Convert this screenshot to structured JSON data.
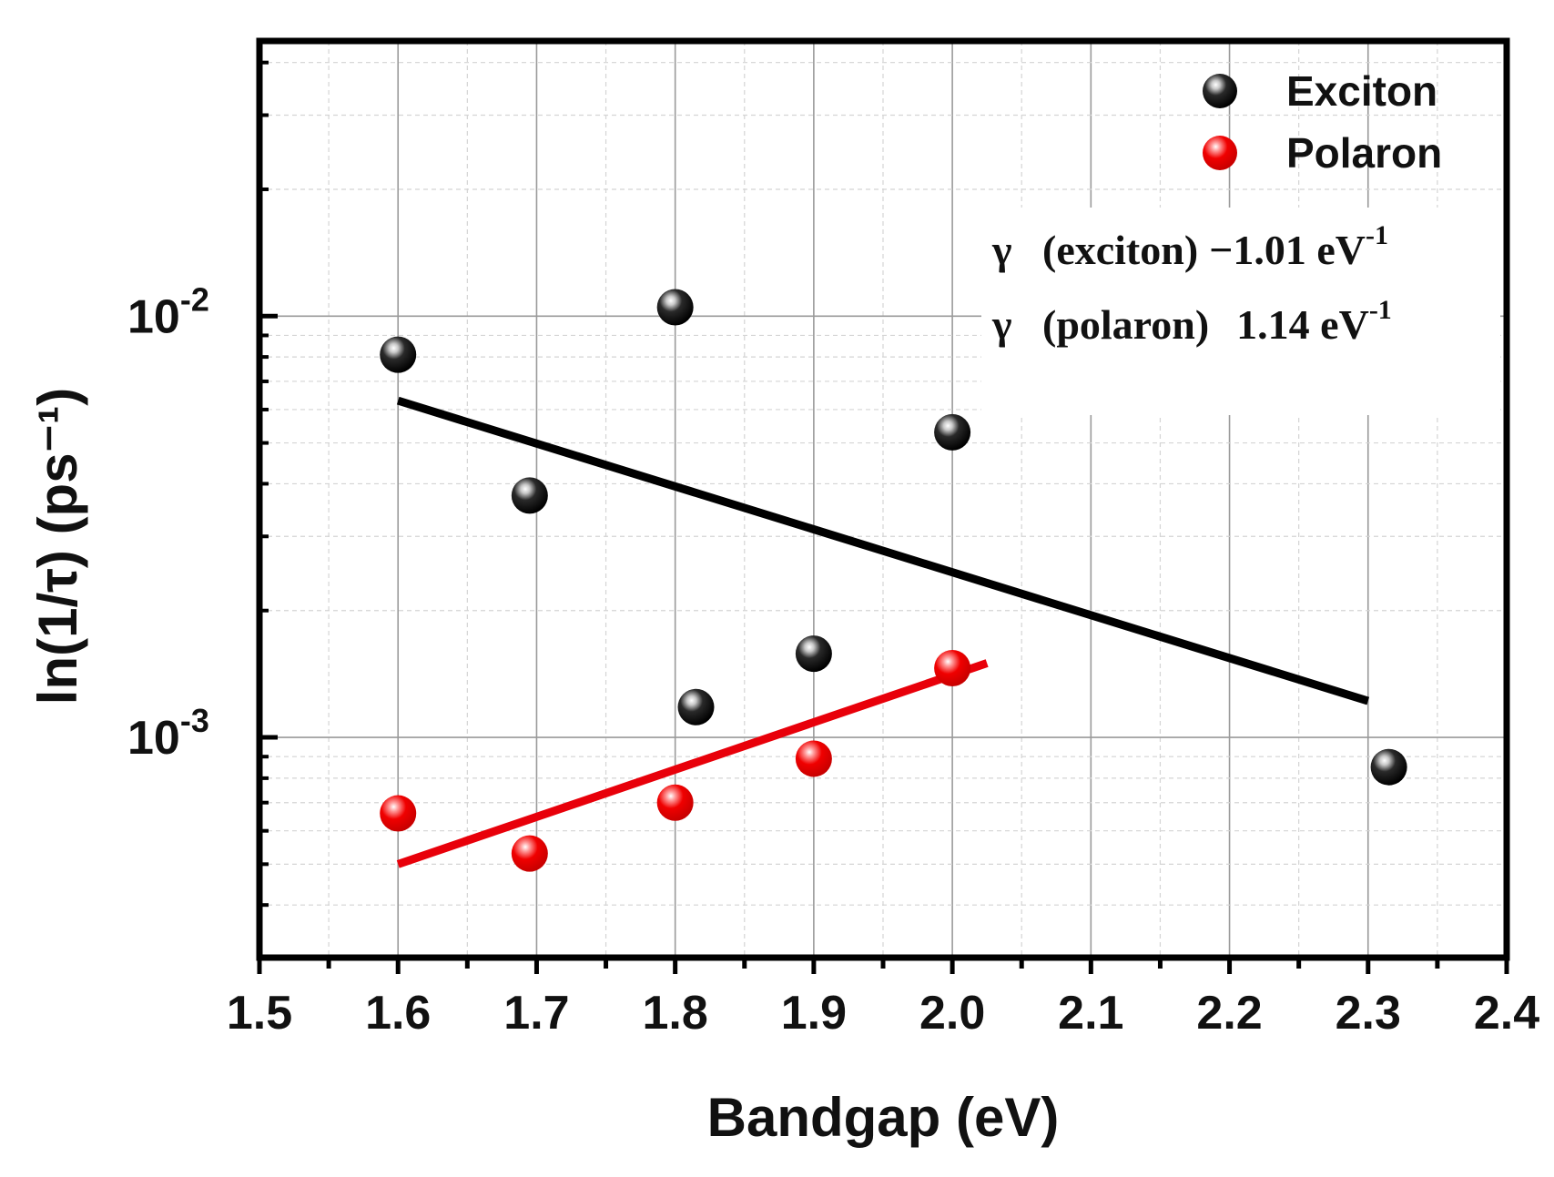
{
  "chart_data": {
    "type": "scatter",
    "xlabel": "Bandgap (eV)",
    "ylabel": "ln(1/τ) (ps⁻¹)",
    "yscale": "log",
    "xlim": [
      1.5,
      2.4
    ],
    "ylim": [
      0.0003,
      0.045
    ],
    "x_ticks": [
      1.5,
      1.6,
      1.7,
      1.8,
      1.9,
      2.0,
      2.1,
      2.2,
      2.3,
      2.4
    ],
    "x_tick_labels": [
      "1.5",
      "1.6",
      "1.7",
      "1.8",
      "1.9",
      "2.0",
      "2.1",
      "2.2",
      "2.3",
      "2.4"
    ],
    "y_ticks": [
      {
        "value": 0.01,
        "base": "10",
        "exp": "-2"
      },
      {
        "value": 0.001,
        "base": "10",
        "exp": "-3"
      }
    ],
    "grid": true,
    "legend_position": "top-right",
    "series": [
      {
        "name": "Exciton",
        "color": "#000000",
        "x": [
          1.6,
          1.695,
          1.8,
          1.815,
          1.9,
          2.0,
          2.315
        ],
        "y": [
          0.0081,
          0.00375,
          0.0105,
          0.00118,
          0.00158,
          0.0053,
          0.00085
        ],
        "fit": {
          "x": [
            1.6,
            2.3
          ],
          "y": [
            0.0063,
            0.00122
          ]
        }
      },
      {
        "name": "Polaron",
        "color": "#e8000a",
        "x": [
          1.6,
          1.695,
          1.8,
          1.9,
          2.0
        ],
        "y": [
          0.00066,
          0.00053,
          0.0007,
          0.00089,
          0.00146
        ],
        "fit": {
          "x": [
            1.6,
            2.025
          ],
          "y": [
            0.0005,
            0.0015
          ]
        }
      }
    ],
    "annotations": [
      {
        "symbol": "γ",
        "label": "(exciton)",
        "value": "−1.01 eV",
        "sup": "-1"
      },
      {
        "symbol": "γ",
        "label": "(polaron)",
        "value": "1.14 eV",
        "sup": "-1"
      }
    ]
  }
}
